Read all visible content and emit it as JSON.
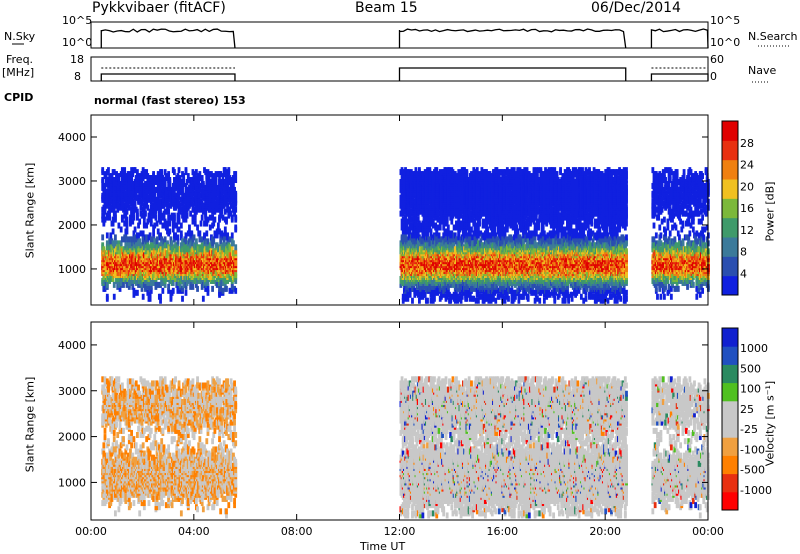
{
  "header": {
    "title": "Pykkvibaer (fitACF)",
    "beam": "Beam 15",
    "date": "06/Dec/2014"
  },
  "panels": {
    "nsky": {
      "left_label": "N.Sky",
      "right_label": "N.Search",
      "left_ticks": [
        "10^5",
        "10^0"
      ],
      "right_ticks": [
        "10^5",
        "10^0"
      ]
    },
    "freq": {
      "left_label": "Freq.",
      "left_unit": "[MHz]",
      "right_label": "Nave",
      "left_ticks": [
        "18",
        "8"
      ],
      "right_ticks": [
        "60",
        "0"
      ]
    },
    "cpid": {
      "label": "CPID",
      "text": "normal (fast stereo) 153"
    }
  },
  "colors": {
    "power_scale": [
      "#1020e0",
      "#2a4fb0",
      "#3b7a9a",
      "#3f9a6a",
      "#7cb83a",
      "#f0c020",
      "#f08010",
      "#e83010",
      "#e00000"
    ],
    "velocity_scale": [
      "#ff0000",
      "#e83010",
      "#ff8000",
      "#f0a040",
      "#c8c8c8",
      "#c8c8c8",
      "#50c020",
      "#2a8a60",
      "#2050c0",
      "#1020d0"
    ]
  },
  "chart_data": [
    {
      "type": "heatmap",
      "title": "Power",
      "ylabel": "Slant Range [km]",
      "xlabel": "",
      "x_ticks": [
        "00:00",
        "04:00",
        "08:00",
        "12:00",
        "16:00",
        "20:00",
        "00:00"
      ],
      "y_ticks": [
        1000,
        2000,
        3000,
        4000
      ],
      "ylim": [
        180,
        4500
      ],
      "xlim_hours": [
        0,
        24
      ],
      "colorbar": {
        "label": "Power [dB]",
        "ticks": [
          4,
          8,
          12,
          16,
          20,
          24,
          28
        ],
        "range": [
          0,
          30
        ]
      },
      "data_intervals_hours": [
        [
          0.4,
          5.6
        ],
        [
          12.0,
          20.8
        ],
        [
          21.8,
          24.0
        ]
      ]
    },
    {
      "type": "heatmap",
      "title": "Velocity",
      "ylabel": "Slant Range [km]",
      "xlabel": "Time UT",
      "x_ticks": [
        "00:00",
        "04:00",
        "08:00",
        "12:00",
        "16:00",
        "20:00",
        "00:00"
      ],
      "y_ticks": [
        1000,
        2000,
        3000,
        4000
      ],
      "ylim": [
        180,
        4500
      ],
      "xlim_hours": [
        0,
        24
      ],
      "colorbar": {
        "label": "Velocity [m s⁻¹]",
        "ticks": [
          "1000",
          "500",
          "100",
          "25",
          "-25",
          "-100",
          "-500",
          "-1000"
        ]
      },
      "data_intervals_hours": [
        [
          0.4,
          5.6
        ],
        [
          12.0,
          20.8
        ],
        [
          21.8,
          24.0
        ]
      ]
    }
  ]
}
